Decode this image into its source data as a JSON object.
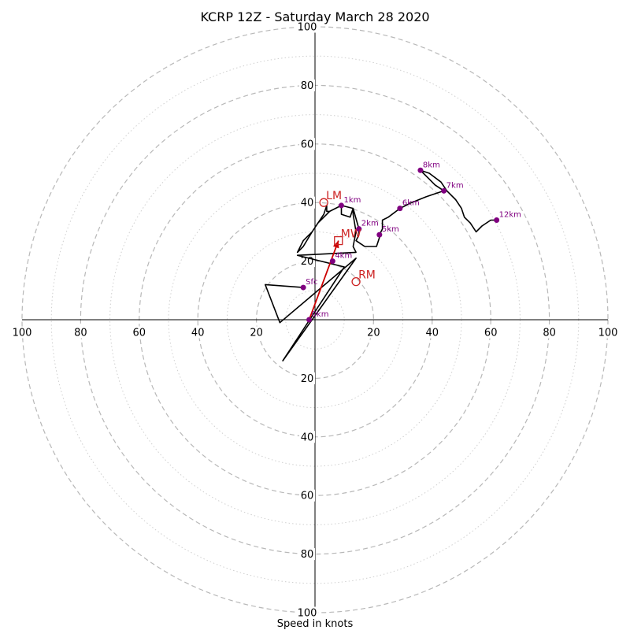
{
  "chart_data": {
    "type": "scatter",
    "title": "KCRP 12Z - Saturday March 28 2020",
    "xlabel": "Speed in knots",
    "ylabel": "",
    "xlim": [
      -100,
      100
    ],
    "ylim": [
      -100,
      100
    ],
    "ring_major_step": 20,
    "ring_minor_step": 10,
    "x_tick_labels": [
      "100",
      "80",
      "60",
      "40",
      "20",
      "",
      "20",
      "40",
      "60",
      "80",
      "100"
    ],
    "x_tick_values": [
      -100,
      -80,
      -60,
      -40,
      -20,
      0,
      20,
      40,
      60,
      80,
      100
    ],
    "y_tick_labels": [
      "100",
      "80",
      "60",
      "40",
      "20",
      "20",
      "40",
      "60",
      "80",
      "100"
    ],
    "y_tick_values": [
      100,
      80,
      60,
      40,
      20,
      -20,
      -40,
      -60,
      -80,
      -100
    ],
    "series": [
      {
        "color": "#000000",
        "points": [
          [
            -4,
            11
          ],
          [
            -17,
            12
          ],
          [
            -12,
            -1
          ],
          [
            14,
            21
          ],
          [
            -11,
            -14
          ],
          [
            10,
            18
          ],
          [
            -6,
            22
          ],
          [
            14,
            23
          ],
          [
            13,
            25
          ],
          [
            14,
            30
          ],
          [
            13,
            36
          ],
          [
            13,
            38
          ],
          [
            12,
            35
          ],
          [
            9,
            36
          ],
          [
            9,
            39
          ],
          [
            5,
            37
          ],
          [
            4,
            37
          ],
          [
            4,
            39
          ],
          [
            3,
            36
          ],
          [
            -1,
            30
          ],
          [
            -4,
            27
          ],
          [
            -6,
            23
          ],
          [
            -4,
            25
          ],
          [
            -1,
            30
          ],
          [
            1,
            33
          ],
          [
            3,
            35
          ],
          [
            5,
            37
          ],
          [
            9,
            39
          ],
          [
            13,
            38
          ],
          [
            15,
            31
          ],
          [
            15,
            29
          ],
          [
            14,
            27
          ],
          [
            17,
            25
          ],
          [
            21,
            25
          ],
          [
            22,
            28
          ],
          [
            22,
            29
          ],
          [
            23,
            31
          ],
          [
            23,
            34
          ],
          [
            25,
            35
          ],
          [
            29,
            38
          ],
          [
            33,
            40
          ],
          [
            38,
            42
          ],
          [
            41,
            43
          ],
          [
            44,
            44
          ],
          [
            41,
            46
          ],
          [
            39,
            48
          ],
          [
            37,
            50
          ],
          [
            36,
            51
          ],
          [
            39,
            50
          ],
          [
            43,
            47
          ],
          [
            45,
            44
          ],
          [
            48,
            41
          ],
          [
            50,
            38
          ],
          [
            51,
            35
          ],
          [
            53,
            33
          ],
          [
            55,
            30
          ],
          [
            57,
            32
          ],
          [
            60,
            34
          ],
          [
            62,
            34
          ]
        ]
      },
      {
        "color": "#cc0000",
        "points": [
          [
            -2,
            0
          ],
          [
            8,
            27
          ]
        ]
      }
    ],
    "height_markers": [
      {
        "label": "Sfc",
        "x": -4,
        "y": 11
      },
      {
        "label": "0km",
        "x": -2,
        "y": 0
      },
      {
        "label": "1km",
        "x": 9,
        "y": 39
      },
      {
        "label": "2km",
        "x": 15,
        "y": 31
      },
      {
        "label": "4km",
        "x": 6,
        "y": 20
      },
      {
        "label": "5km",
        "x": 22,
        "y": 29
      },
      {
        "label": "6km",
        "x": 29,
        "y": 38
      },
      {
        "label": "7km",
        "x": 44,
        "y": 44
      },
      {
        "label": "8km",
        "x": 36,
        "y": 51
      },
      {
        "label": "12km",
        "x": 62,
        "y": 34
      }
    ],
    "marker_color": "#800080",
    "storm_motion": [
      {
        "label": "LM",
        "shape": "circle",
        "x": 3,
        "y": 40
      },
      {
        "label": "MW",
        "shape": "square",
        "x": 8,
        "y": 27
      },
      {
        "label": "RM",
        "shape": "circle",
        "x": 14,
        "y": 13
      }
    ],
    "storm_motion_color": "#cc2222"
  }
}
